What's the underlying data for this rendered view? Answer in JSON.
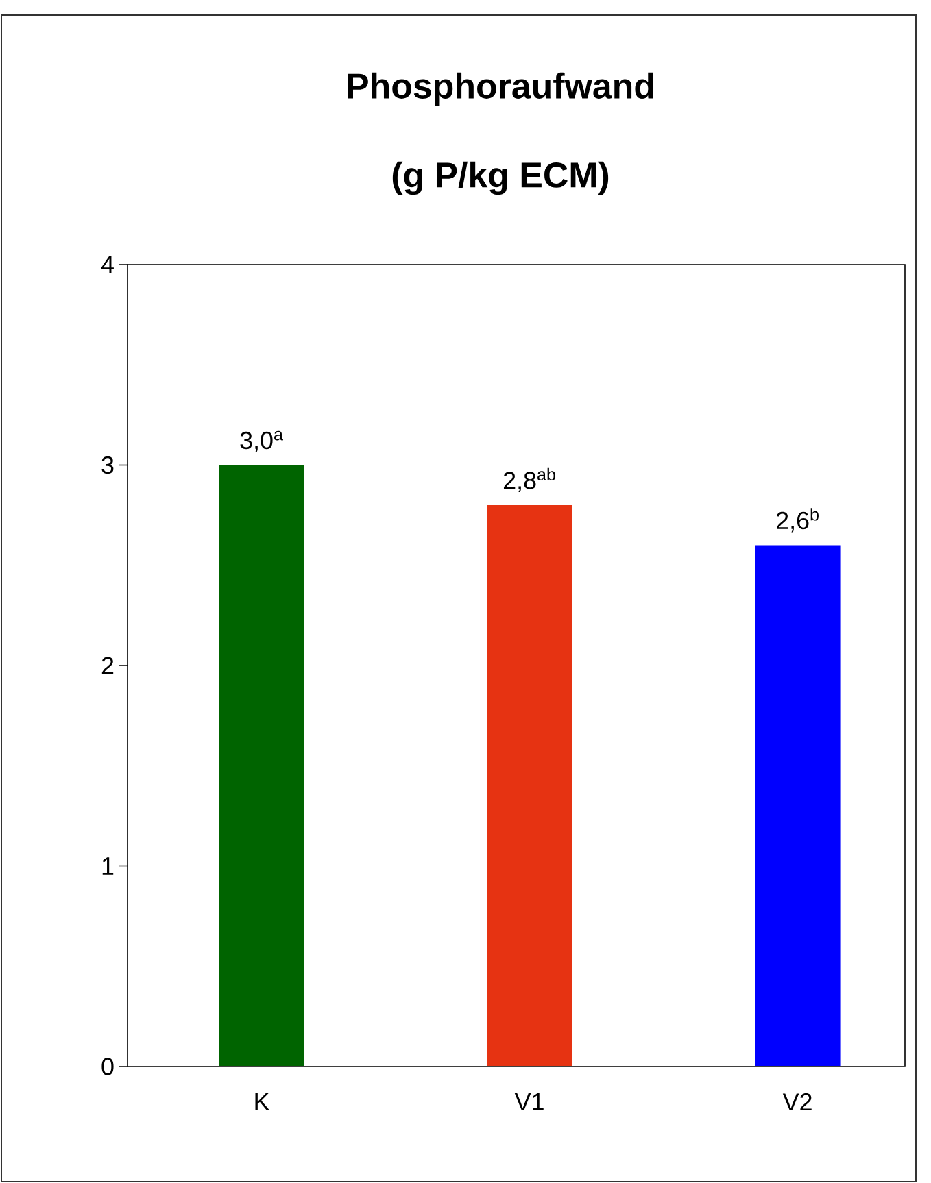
{
  "chart_data": {
    "type": "bar",
    "title": "Phosphoraufwand",
    "subtitle": "(g P/kg ECM)",
    "categories": [
      "K",
      "V1",
      "V2"
    ],
    "values": [
      3.0,
      2.8,
      2.6
    ],
    "colors": [
      "#006400",
      "#e63312",
      "#0000ff"
    ],
    "value_labels": [
      "3,0$^{a}$",
      "2,8$^{ab}$",
      "2,6$^{b}$"
    ],
    "ylim": [
      0,
      4
    ],
    "yticks": [
      0,
      1,
      2,
      3,
      4
    ]
  }
}
